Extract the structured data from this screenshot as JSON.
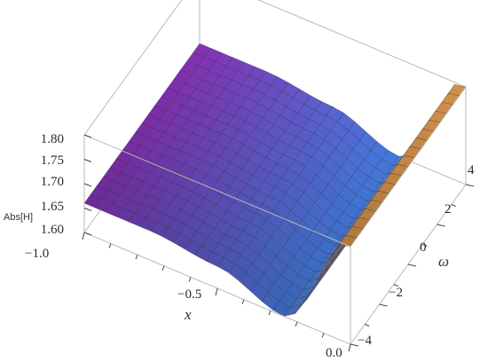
{
  "chart_data": {
    "type": "surface3d",
    "title": "",
    "x_label": "x",
    "y_label": "ω",
    "z_label": "Abs[H]",
    "x_range": [
      -1.0,
      0.0
    ],
    "y_range": [
      -4,
      4
    ],
    "z_range": [
      1.6,
      1.8
    ],
    "x_ticks": [
      "−1.0",
      "−0.5",
      "0.0"
    ],
    "y_ticks": [
      "−4",
      "−2",
      "0",
      "2",
      "4"
    ],
    "z_ticks": [
      "1.60",
      "1.65",
      "1.70",
      "1.75",
      "1.80"
    ],
    "surface_profile": {
      "note_x": [
        -1.0,
        -0.75,
        -0.5,
        -0.25,
        0.0
      ],
      "values": [
        1.66,
        1.66,
        1.645,
        1.6,
        1.8
      ]
    },
    "colors": {
      "low": "#7e2ea8",
      "mid": "#3f74d0",
      "high": "#d28a3a"
    }
  }
}
